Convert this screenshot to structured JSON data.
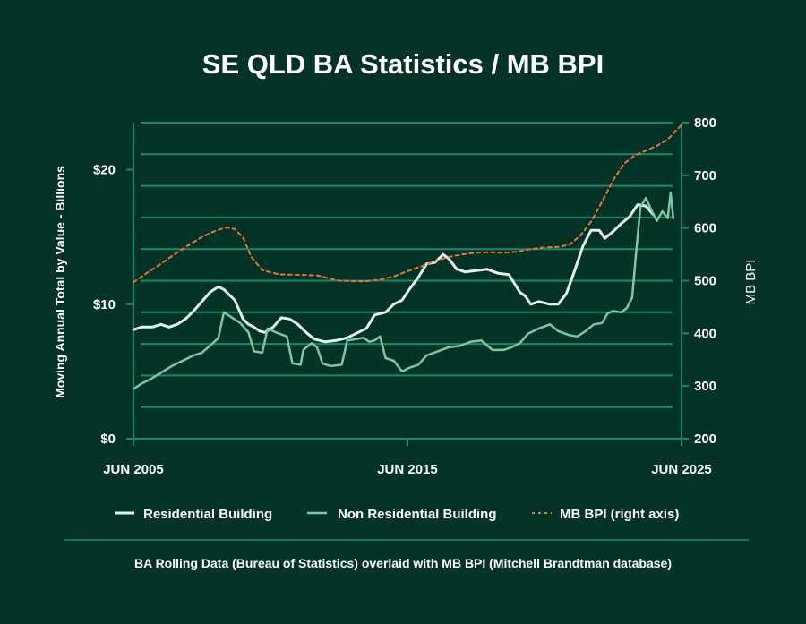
{
  "colors": {
    "background": "#033326",
    "axis": "#1e8a63",
    "grid": "#1e8a63",
    "residential": "#e3f2ea",
    "non_residential": "#7cc8a5",
    "bpi": "#e8743f",
    "text": "#ffffff"
  },
  "chart_data": {
    "type": "line",
    "title": "SE QLD BA Statistics / MB BPI",
    "ylabel": "Moving Annual Total by Value - Billions",
    "y2label": "MB BPI",
    "footnote": "BA Rolling Data (Bureau of Statistics) overlaid with MB BPI (Mitchell Brandtman database)",
    "xlim": [
      2005.5,
      2025.5
    ],
    "ylim": [
      0,
      23.5
    ],
    "y2lim": [
      200,
      800
    ],
    "x_ticks": [
      {
        "value": 2005.5,
        "label": "JUN 2005"
      },
      {
        "value": 2015.5,
        "label": "JUN 2015"
      },
      {
        "value": 2025.5,
        "label": "JUN  2025"
      }
    ],
    "y_ticks": [
      {
        "value": 0,
        "label": "$0"
      },
      {
        "value": 10,
        "label": "$10"
      },
      {
        "value": 20,
        "label": "$20"
      }
    ],
    "y2_ticks": [
      {
        "value": 200,
        "label": "200"
      },
      {
        "value": 300,
        "label": "300"
      },
      {
        "value": 400,
        "label": "400"
      },
      {
        "value": 500,
        "label": "500"
      },
      {
        "value": 600,
        "label": "600"
      },
      {
        "value": 700,
        "label": "700"
      },
      {
        "value": 800,
        "label": "800"
      }
    ],
    "grid": true,
    "legend_position": "bottom",
    "series": [
      {
        "name": "Residential Building",
        "axis": "left",
        "points": [
          [
            2005.5,
            8.1
          ],
          [
            2005.8,
            8.3
          ],
          [
            2006.2,
            8.3
          ],
          [
            2006.5,
            8.5
          ],
          [
            2006.8,
            8.3
          ],
          [
            2007.1,
            8.5
          ],
          [
            2007.4,
            8.9
          ],
          [
            2007.7,
            9.5
          ],
          [
            2008.0,
            10.2
          ],
          [
            2008.3,
            10.9
          ],
          [
            2008.6,
            11.3
          ],
          [
            2008.8,
            11.1
          ],
          [
            2009.0,
            10.7
          ],
          [
            2009.2,
            10.3
          ],
          [
            2009.35,
            9.6
          ],
          [
            2009.5,
            8.9
          ],
          [
            2009.7,
            8.5
          ],
          [
            2009.9,
            8.3
          ],
          [
            2010.1,
            8.0
          ],
          [
            2010.3,
            7.9
          ],
          [
            2010.6,
            8.3
          ],
          [
            2010.9,
            9.0
          ],
          [
            2011.2,
            8.9
          ],
          [
            2011.5,
            8.5
          ],
          [
            2011.8,
            7.9
          ],
          [
            2012.1,
            7.4
          ],
          [
            2012.5,
            7.2
          ],
          [
            2012.9,
            7.3
          ],
          [
            2013.3,
            7.5
          ],
          [
            2013.7,
            7.9
          ],
          [
            2014.0,
            8.2
          ],
          [
            2014.3,
            9.2
          ],
          [
            2014.7,
            9.4
          ],
          [
            2015.0,
            10.0
          ],
          [
            2015.3,
            10.3
          ],
          [
            2015.6,
            11.2
          ],
          [
            2015.9,
            12.0
          ],
          [
            2016.2,
            13.0
          ],
          [
            2016.5,
            13.1
          ],
          [
            2016.8,
            13.7
          ],
          [
            2017.0,
            13.4
          ],
          [
            2017.3,
            12.6
          ],
          [
            2017.6,
            12.4
          ],
          [
            2018.0,
            12.5
          ],
          [
            2018.4,
            12.6
          ],
          [
            2018.8,
            12.3
          ],
          [
            2019.2,
            12.2
          ],
          [
            2019.6,
            10.9
          ],
          [
            2019.8,
            10.6
          ],
          [
            2020.0,
            10.0
          ],
          [
            2020.3,
            10.2
          ],
          [
            2020.7,
            10.0
          ],
          [
            2021.0,
            10.0
          ],
          [
            2021.3,
            10.8
          ],
          [
            2021.6,
            12.5
          ],
          [
            2021.9,
            14.3
          ],
          [
            2022.2,
            15.5
          ],
          [
            2022.5,
            15.5
          ],
          [
            2022.7,
            14.9
          ],
          [
            2023.0,
            15.4
          ],
          [
            2023.3,
            16.0
          ],
          [
            2023.6,
            16.5
          ],
          [
            2023.9,
            17.4
          ],
          [
            2024.2,
            17.3
          ],
          [
            2024.45,
            16.7
          ]
        ]
      },
      {
        "name": "Non Residential Building",
        "axis": "left",
        "points": [
          [
            2005.5,
            3.7
          ],
          [
            2005.8,
            4.1
          ],
          [
            2006.1,
            4.4
          ],
          [
            2006.5,
            4.9
          ],
          [
            2006.9,
            5.4
          ],
          [
            2007.3,
            5.8
          ],
          [
            2007.7,
            6.2
          ],
          [
            2008.0,
            6.4
          ],
          [
            2008.4,
            7.1
          ],
          [
            2008.6,
            7.5
          ],
          [
            2008.8,
            9.4
          ],
          [
            2009.1,
            9.0
          ],
          [
            2009.4,
            8.6
          ],
          [
            2009.7,
            7.9
          ],
          [
            2009.9,
            6.5
          ],
          [
            2010.2,
            6.4
          ],
          [
            2010.4,
            8.2
          ],
          [
            2010.7,
            7.9
          ],
          [
            2011.1,
            7.6
          ],
          [
            2011.3,
            5.6
          ],
          [
            2011.6,
            5.5
          ],
          [
            2011.7,
            6.6
          ],
          [
            2012.0,
            7.1
          ],
          [
            2012.2,
            6.8
          ],
          [
            2012.4,
            5.6
          ],
          [
            2012.7,
            5.4
          ],
          [
            2013.1,
            5.5
          ],
          [
            2013.3,
            7.3
          ],
          [
            2013.6,
            7.4
          ],
          [
            2013.9,
            7.5
          ],
          [
            2014.1,
            7.2
          ],
          [
            2014.3,
            7.3
          ],
          [
            2014.5,
            7.6
          ],
          [
            2014.7,
            6.0
          ],
          [
            2015.0,
            5.8
          ],
          [
            2015.3,
            5.0
          ],
          [
            2015.6,
            5.3
          ],
          [
            2015.9,
            5.5
          ],
          [
            2016.2,
            6.2
          ],
          [
            2016.6,
            6.5
          ],
          [
            2017.0,
            6.8
          ],
          [
            2017.4,
            6.9
          ],
          [
            2017.8,
            7.2
          ],
          [
            2018.2,
            7.3
          ],
          [
            2018.6,
            6.6
          ],
          [
            2019.0,
            6.6
          ],
          [
            2019.3,
            6.8
          ],
          [
            2019.6,
            7.1
          ],
          [
            2019.9,
            7.8
          ],
          [
            2020.3,
            8.2
          ],
          [
            2020.7,
            8.5
          ],
          [
            2021.0,
            8.0
          ],
          [
            2021.4,
            7.7
          ],
          [
            2021.7,
            7.6
          ],
          [
            2022.0,
            8.0
          ],
          [
            2022.3,
            8.5
          ],
          [
            2022.6,
            8.6
          ],
          [
            2022.8,
            9.3
          ],
          [
            2023.0,
            9.5
          ],
          [
            2023.3,
            9.4
          ],
          [
            2023.5,
            9.7
          ],
          [
            2023.7,
            10.5
          ],
          [
            2023.85,
            14.0
          ],
          [
            2024.0,
            17.2
          ],
          [
            2024.2,
            17.9
          ],
          [
            2024.4,
            17.0
          ],
          [
            2024.6,
            16.2
          ],
          [
            2024.8,
            16.9
          ],
          [
            2025.0,
            16.4
          ],
          [
            2025.1,
            18.3
          ],
          [
            2025.2,
            16.4
          ]
        ]
      },
      {
        "name": "MB BPI (right axis)",
        "axis": "right",
        "style": "dashed",
        "points": [
          [
            2005.5,
            497
          ],
          [
            2006.0,
            515
          ],
          [
            2006.5,
            532
          ],
          [
            2007.0,
            550
          ],
          [
            2007.5,
            567
          ],
          [
            2008.0,
            583
          ],
          [
            2008.5,
            595
          ],
          [
            2008.9,
            601
          ],
          [
            2009.2,
            598
          ],
          [
            2009.5,
            582
          ],
          [
            2009.8,
            545
          ],
          [
            2010.2,
            520
          ],
          [
            2010.8,
            512
          ],
          [
            2011.5,
            511
          ],
          [
            2012.2,
            510
          ],
          [
            2012.6,
            505
          ],
          [
            2013.0,
            500
          ],
          [
            2013.5,
            499
          ],
          [
            2014.0,
            499
          ],
          [
            2014.5,
            502
          ],
          [
            2015.0,
            508
          ],
          [
            2015.5,
            518
          ],
          [
            2016.0,
            527
          ],
          [
            2016.5,
            537
          ],
          [
            2017.0,
            545
          ],
          [
            2017.5,
            550
          ],
          [
            2018.0,
            553
          ],
          [
            2018.5,
            554
          ],
          [
            2019.0,
            553
          ],
          [
            2019.5,
            555
          ],
          [
            2020.0,
            560
          ],
          [
            2020.5,
            563
          ],
          [
            2021.0,
            564
          ],
          [
            2021.4,
            568
          ],
          [
            2021.8,
            585
          ],
          [
            2022.2,
            612
          ],
          [
            2022.6,
            650
          ],
          [
            2023.0,
            690
          ],
          [
            2023.4,
            722
          ],
          [
            2023.8,
            738
          ],
          [
            2024.2,
            747
          ],
          [
            2024.6,
            756
          ],
          [
            2025.0,
            768
          ],
          [
            2025.3,
            785
          ],
          [
            2025.55,
            798
          ]
        ]
      }
    ]
  }
}
